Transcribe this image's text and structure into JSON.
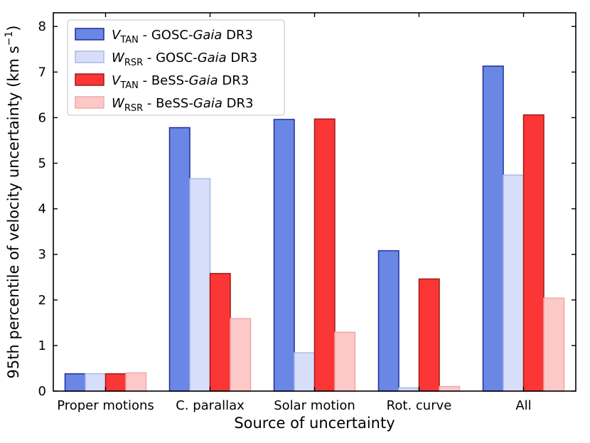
{
  "chart_data": {
    "type": "bar",
    "categories": [
      "Proper motions",
      "C. parallax",
      "Solar motion",
      "Rot. curve",
      "All"
    ],
    "series": [
      {
        "name_main": "V",
        "name_sub": "TAN",
        "name_rest": " - GOSC-",
        "name_italic": "Gaia",
        "name_end": " DR3",
        "values": [
          0.38,
          5.78,
          5.96,
          3.08,
          7.13
        ],
        "fill": "#6a87e6",
        "stroke": "#1f2e99"
      },
      {
        "name_main": "W",
        "name_sub": "RSR",
        "name_rest": " - GOSC-",
        "name_italic": "Gaia",
        "name_end": " DR3",
        "values": [
          0.38,
          4.66,
          0.84,
          0.07,
          4.74
        ],
        "fill": "#d6defa",
        "stroke": "#aab8ec"
      },
      {
        "name_main": "V",
        "name_sub": "TAN",
        "name_rest": " - BeSS-",
        "name_italic": "Gaia",
        "name_end": " DR3",
        "values": [
          0.38,
          2.58,
          5.97,
          2.46,
          6.06
        ],
        "fill": "#fb3636",
        "stroke": "#a01a1a"
      },
      {
        "name_main": "W",
        "name_sub": "RSR",
        "name_rest": " - BeSS-",
        "name_italic": "Gaia",
        "name_end": " DR3",
        "values": [
          0.4,
          1.59,
          1.29,
          0.1,
          2.04
        ],
        "fill": "#fdc8c8",
        "stroke": "#f0a8a8"
      }
    ],
    "xlabel": "Source of uncertainty",
    "ylabel": "95th percentile of velocity uncertainty (km s",
    "ylabel_sup": "−1",
    "ylabel_end": ")",
    "ylim": [
      0,
      8.3
    ],
    "yticks": [
      0,
      1,
      2,
      3,
      4,
      5,
      6,
      7,
      8
    ],
    "legend_position": "top-left",
    "grid": false
  }
}
